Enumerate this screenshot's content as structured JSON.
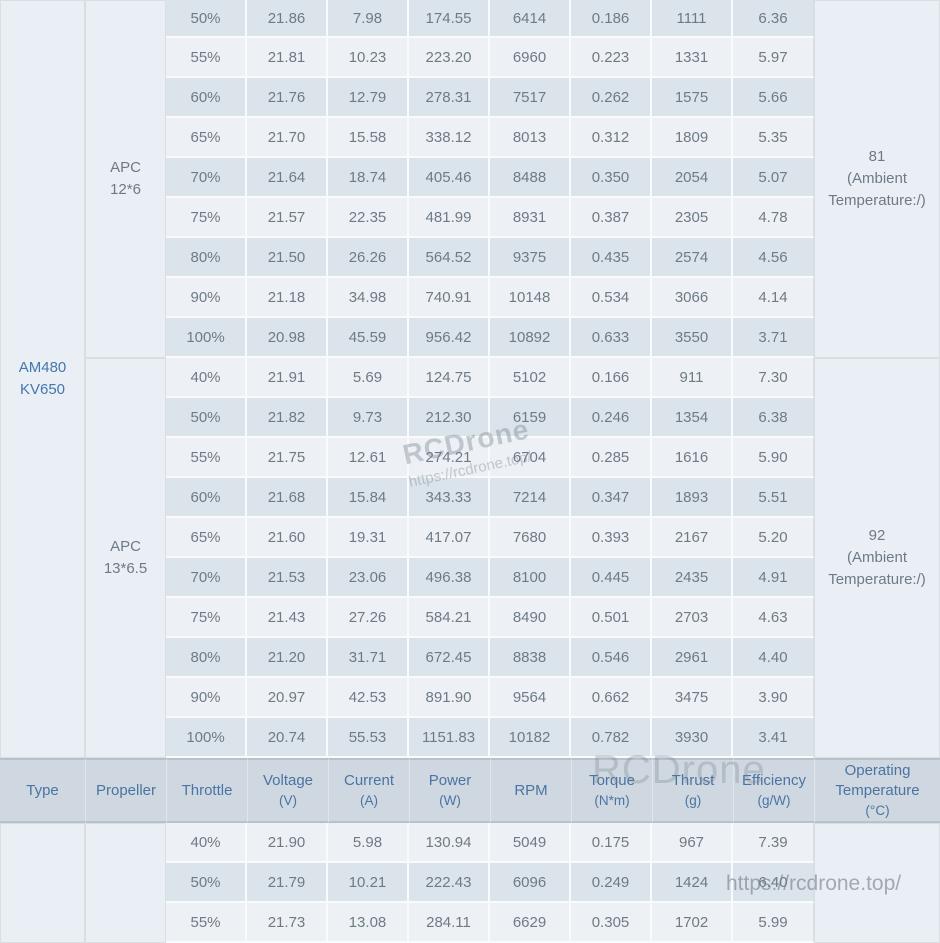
{
  "watermarks": {
    "center_brand": "RCDrone",
    "center_url": "https://rcdrone.top/",
    "header_brand": "RCDrone",
    "bottom_url": "https://rcdrone.top/"
  },
  "colors": {
    "row_dark": "#dce4eb",
    "row_light": "#edf1f6",
    "merged_cell_bg": "#eaeff6",
    "header_bg": "#cfd8e0",
    "header_text": "#4a74a3",
    "data_text": "#6e7a85",
    "type_text": "#4377ad"
  },
  "table": {
    "columns": [
      {
        "key": "type",
        "label": "Type",
        "unit": ""
      },
      {
        "key": "propeller",
        "label": "Propeller",
        "unit": ""
      },
      {
        "key": "throttle",
        "label": "Throttle",
        "unit": ""
      },
      {
        "key": "voltage",
        "label": "Voltage",
        "unit": "(V)"
      },
      {
        "key": "current",
        "label": "Current",
        "unit": "(A)"
      },
      {
        "key": "power",
        "label": "Power",
        "unit": "(W)"
      },
      {
        "key": "rpm",
        "label": "RPM",
        "unit": ""
      },
      {
        "key": "torque",
        "label": "Torque",
        "unit": "(N*m)"
      },
      {
        "key": "thrust",
        "label": "Thrust",
        "unit": "(g)"
      },
      {
        "key": "efficiency",
        "label": "Efficiency",
        "unit": "(g/W)"
      },
      {
        "key": "optemp",
        "label": "Operating Temperature",
        "unit": "(°C)"
      }
    ],
    "type_label": "AM480\nKV650",
    "sections": [
      {
        "propeller": "APC\n12*6",
        "operating_temperature": "81\n(Ambient\nTemperature:/)",
        "stripe_start": "dark",
        "rows": [
          [
            "50%",
            "21.86",
            "7.98",
            "174.55",
            "6414",
            "0.186",
            "1111",
            "6.36"
          ],
          [
            "55%",
            "21.81",
            "10.23",
            "223.20",
            "6960",
            "0.223",
            "1331",
            "5.97"
          ],
          [
            "60%",
            "21.76",
            "12.79",
            "278.31",
            "7517",
            "0.262",
            "1575",
            "5.66"
          ],
          [
            "65%",
            "21.70",
            "15.58",
            "338.12",
            "8013",
            "0.312",
            "1809",
            "5.35"
          ],
          [
            "70%",
            "21.64",
            "18.74",
            "405.46",
            "8488",
            "0.350",
            "2054",
            "5.07"
          ],
          [
            "75%",
            "21.57",
            "22.35",
            "481.99",
            "8931",
            "0.387",
            "2305",
            "4.78"
          ],
          [
            "80%",
            "21.50",
            "26.26",
            "564.52",
            "9375",
            "0.435",
            "2574",
            "4.56"
          ],
          [
            "90%",
            "21.18",
            "34.98",
            "740.91",
            "10148",
            "0.534",
            "3066",
            "4.14"
          ],
          [
            "100%",
            "20.98",
            "45.59",
            "956.42",
            "10892",
            "0.633",
            "3550",
            "3.71"
          ]
        ]
      },
      {
        "propeller": "APC\n13*6.5",
        "operating_temperature": "92\n(Ambient\nTemperature:/)",
        "stripe_start": "light",
        "rows": [
          [
            "40%",
            "21.91",
            "5.69",
            "124.75",
            "5102",
            "0.166",
            "911",
            "7.30"
          ],
          [
            "50%",
            "21.82",
            "9.73",
            "212.30",
            "6159",
            "0.246",
            "1354",
            "6.38"
          ],
          [
            "55%",
            "21.75",
            "12.61",
            "274.21",
            "6704",
            "0.285",
            "1616",
            "5.90"
          ],
          [
            "60%",
            "21.68",
            "15.84",
            "343.33",
            "7214",
            "0.347",
            "1893",
            "5.51"
          ],
          [
            "65%",
            "21.60",
            "19.31",
            "417.07",
            "7680",
            "0.393",
            "2167",
            "5.20"
          ],
          [
            "70%",
            "21.53",
            "23.06",
            "496.38",
            "8100",
            "0.445",
            "2435",
            "4.91"
          ],
          [
            "75%",
            "21.43",
            "27.26",
            "584.21",
            "8490",
            "0.501",
            "2703",
            "4.63"
          ],
          [
            "80%",
            "21.20",
            "31.71",
            "672.45",
            "8838",
            "0.546",
            "2961",
            "4.40"
          ],
          [
            "90%",
            "20.97",
            "42.53",
            "891.90",
            "9564",
            "0.662",
            "3475",
            "3.90"
          ],
          [
            "100%",
            "20.74",
            "55.53",
            "1151.83",
            "10182",
            "0.782",
            "3930",
            "3.41"
          ]
        ]
      }
    ],
    "bottom_section": {
      "propeller": "",
      "operating_temperature": "",
      "stripe_start": "light",
      "rows": [
        [
          "40%",
          "21.90",
          "5.98",
          "130.94",
          "5049",
          "0.175",
          "967",
          "7.39"
        ],
        [
          "50%",
          "21.79",
          "10.21",
          "222.43",
          "6096",
          "0.249",
          "1424",
          "6.40"
        ],
        [
          "55%",
          "21.73",
          "13.08",
          "284.11",
          "6629",
          "0.305",
          "1702",
          "5.99"
        ]
      ]
    }
  }
}
